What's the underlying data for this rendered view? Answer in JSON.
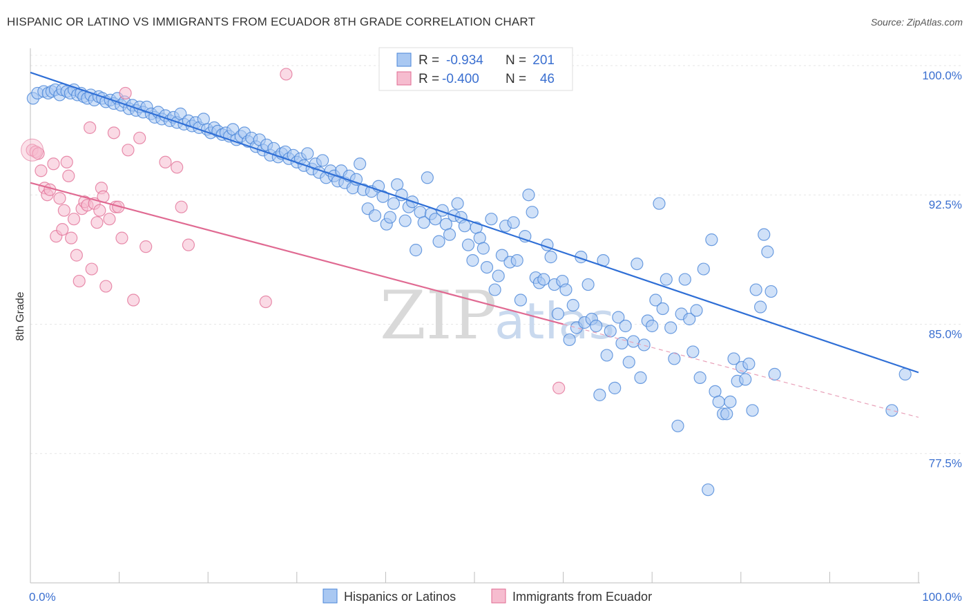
{
  "header": {
    "title": "HISPANIC OR LATINO VS IMMIGRANTS FROM ECUADOR 8TH GRADE CORRELATION CHART",
    "source": "Source: ZipAtlas.com"
  },
  "legend": {
    "rows": [
      {
        "r_label": "R =",
        "r_value": "-0.934",
        "n_label": "N =",
        "n_value": "201"
      },
      {
        "r_label": "R =",
        "r_value": "-0.400",
        "n_label": "N =",
        "n_value": "46"
      }
    ]
  },
  "watermark": {
    "part1": "ZIP",
    "part2": "atlas"
  },
  "chart_data": {
    "type": "scatter",
    "title": "HISPANIC OR LATINO VS IMMIGRANTS FROM ECUADOR 8TH GRADE CORRELATION CHART",
    "xlabel": "",
    "ylabel": "8th Grade",
    "xlim": [
      0,
      100
    ],
    "ylim": [
      70,
      101
    ],
    "x_tick_labels": [
      {
        "value": 0,
        "label": "0.0%"
      },
      {
        "value": 100,
        "label": "100.0%"
      }
    ],
    "y_ticks": [
      {
        "value": 77.5,
        "label": "77.5%"
      },
      {
        "value": 85.0,
        "label": "85.0%"
      },
      {
        "value": 92.5,
        "label": "92.5%"
      },
      {
        "value": 100.0,
        "label": "100.0%"
      }
    ],
    "grid": true,
    "legend_position": "top-center",
    "colors": {
      "series1": "#4a86d8",
      "series1_fill": "#a9c8f2",
      "series2": "#e06a92",
      "series2_fill": "#f6bccf",
      "tick": "#3a6fd0"
    },
    "series": [
      {
        "name": "Hispanics or Latinos",
        "R": -0.934,
        "N": 201,
        "trend": {
          "x": [
            0,
            100
          ],
          "y": [
            99.6,
            82.2
          ]
        },
        "points": [
          [
            0.3,
            98.1
          ],
          [
            0.8,
            98.4
          ],
          [
            1.5,
            98.5
          ],
          [
            2.0,
            98.4
          ],
          [
            2.4,
            98.5
          ],
          [
            2.8,
            98.6
          ],
          [
            3.3,
            98.3
          ],
          [
            3.6,
            98.6
          ],
          [
            4.1,
            98.5
          ],
          [
            4.5,
            98.4
          ],
          [
            4.9,
            98.6
          ],
          [
            5.3,
            98.3
          ],
          [
            5.7,
            98.4
          ],
          [
            6.0,
            98.2
          ],
          [
            6.4,
            98.1
          ],
          [
            6.8,
            98.3
          ],
          [
            7.2,
            98.0
          ],
          [
            7.7,
            98.2
          ],
          [
            8.1,
            98.1
          ],
          [
            8.5,
            97.9
          ],
          [
            9.0,
            98.0
          ],
          [
            9.4,
            97.8
          ],
          [
            9.8,
            98.1
          ],
          [
            10.2,
            97.7
          ],
          [
            10.6,
            97.9
          ],
          [
            11.1,
            97.5
          ],
          [
            11.5,
            97.7
          ],
          [
            11.9,
            97.4
          ],
          [
            12.3,
            97.6
          ],
          [
            12.7,
            97.3
          ],
          [
            13.1,
            97.6
          ],
          [
            13.6,
            97.2
          ],
          [
            14.0,
            97.0
          ],
          [
            14.4,
            97.3
          ],
          [
            14.8,
            96.9
          ],
          [
            15.2,
            97.1
          ],
          [
            15.7,
            96.8
          ],
          [
            16.1,
            97.0
          ],
          [
            16.5,
            96.7
          ],
          [
            16.9,
            97.2
          ],
          [
            17.3,
            96.6
          ],
          [
            17.8,
            96.8
          ],
          [
            18.2,
            96.5
          ],
          [
            18.6,
            96.7
          ],
          [
            19.0,
            96.4
          ],
          [
            19.5,
            96.9
          ],
          [
            19.9,
            96.3
          ],
          [
            20.3,
            96.1
          ],
          [
            20.7,
            96.4
          ],
          [
            21.1,
            96.2
          ],
          [
            21.6,
            96.0
          ],
          [
            22.0,
            96.1
          ],
          [
            22.4,
            95.9
          ],
          [
            22.8,
            96.3
          ],
          [
            23.2,
            95.7
          ],
          [
            23.7,
            95.9
          ],
          [
            24.1,
            96.1
          ],
          [
            24.5,
            95.6
          ],
          [
            24.9,
            95.8
          ],
          [
            25.4,
            95.3
          ],
          [
            25.8,
            95.7
          ],
          [
            26.2,
            95.1
          ],
          [
            26.6,
            95.4
          ],
          [
            27.0,
            94.8
          ],
          [
            27.4,
            95.2
          ],
          [
            27.9,
            94.7
          ],
          [
            28.3,
            94.9
          ],
          [
            28.7,
            95.0
          ],
          [
            29.1,
            94.6
          ],
          [
            29.6,
            94.8
          ],
          [
            30.0,
            94.4
          ],
          [
            30.4,
            94.6
          ],
          [
            30.8,
            94.2
          ],
          [
            31.2,
            94.9
          ],
          [
            31.7,
            94.0
          ],
          [
            32.1,
            94.3
          ],
          [
            32.5,
            93.8
          ],
          [
            32.9,
            94.5
          ],
          [
            33.3,
            93.5
          ],
          [
            33.8,
            93.9
          ],
          [
            34.2,
            93.6
          ],
          [
            34.6,
            93.3
          ],
          [
            35.0,
            93.9
          ],
          [
            35.4,
            93.2
          ],
          [
            35.9,
            93.6
          ],
          [
            36.3,
            92.9
          ],
          [
            36.7,
            93.4
          ],
          [
            37.1,
            94.3
          ],
          [
            37.5,
            92.8
          ],
          [
            38.0,
            91.7
          ],
          [
            38.4,
            92.7
          ],
          [
            38.8,
            91.3
          ],
          [
            39.2,
            93.0
          ],
          [
            39.7,
            92.4
          ],
          [
            40.1,
            90.8
          ],
          [
            40.5,
            91.2
          ],
          [
            40.9,
            92.0
          ],
          [
            41.3,
            93.1
          ],
          [
            41.8,
            92.5
          ],
          [
            42.2,
            91.0
          ],
          [
            42.6,
            91.8
          ],
          [
            43.0,
            92.1
          ],
          [
            43.4,
            89.3
          ],
          [
            43.9,
            91.5
          ],
          [
            44.3,
            90.9
          ],
          [
            44.7,
            93.5
          ],
          [
            45.1,
            91.4
          ],
          [
            45.6,
            91.1
          ],
          [
            46.0,
            89.8
          ],
          [
            46.4,
            91.6
          ],
          [
            46.8,
            90.8
          ],
          [
            47.2,
            90.2
          ],
          [
            47.7,
            91.3
          ],
          [
            48.1,
            92.0
          ],
          [
            48.5,
            91.2
          ],
          [
            48.9,
            90.7
          ],
          [
            49.3,
            89.6
          ],
          [
            49.8,
            88.7
          ],
          [
            50.2,
            90.6
          ],
          [
            50.6,
            90.0
          ],
          [
            51.0,
            89.4
          ],
          [
            51.4,
            88.3
          ],
          [
            51.9,
            91.1
          ],
          [
            52.3,
            87.0
          ],
          [
            52.7,
            87.8
          ],
          [
            53.1,
            89.0
          ],
          [
            53.5,
            90.7
          ],
          [
            54.0,
            88.6
          ],
          [
            54.4,
            90.9
          ],
          [
            54.8,
            88.7
          ],
          [
            55.2,
            86.4
          ],
          [
            55.7,
            90.1
          ],
          [
            56.1,
            92.5
          ],
          [
            56.5,
            91.5
          ],
          [
            56.9,
            87.7
          ],
          [
            57.3,
            87.4
          ],
          [
            57.8,
            87.6
          ],
          [
            58.2,
            89.6
          ],
          [
            58.6,
            88.9
          ],
          [
            59.0,
            87.3
          ],
          [
            59.4,
            85.6
          ],
          [
            59.9,
            87.5
          ],
          [
            60.3,
            87.0
          ],
          [
            60.7,
            84.1
          ],
          [
            61.1,
            86.1
          ],
          [
            61.5,
            84.8
          ],
          [
            62.0,
            88.9
          ],
          [
            62.4,
            85.1
          ],
          [
            62.8,
            87.3
          ],
          [
            63.2,
            85.3
          ],
          [
            63.7,
            84.9
          ],
          [
            64.1,
            80.9
          ],
          [
            64.5,
            88.7
          ],
          [
            64.9,
            83.2
          ],
          [
            65.3,
            84.6
          ],
          [
            65.8,
            81.3
          ],
          [
            66.2,
            85.4
          ],
          [
            66.6,
            83.9
          ],
          [
            67.0,
            84.9
          ],
          [
            67.4,
            82.8
          ],
          [
            67.9,
            84.0
          ],
          [
            68.3,
            88.5
          ],
          [
            68.7,
            81.9
          ],
          [
            69.1,
            83.8
          ],
          [
            69.5,
            85.2
          ],
          [
            70.0,
            84.9
          ],
          [
            70.4,
            86.4
          ],
          [
            70.8,
            92.0
          ],
          [
            71.2,
            85.9
          ],
          [
            71.6,
            87.6
          ],
          [
            72.1,
            84.8
          ],
          [
            72.5,
            83.0
          ],
          [
            72.9,
            79.1
          ],
          [
            73.3,
            85.6
          ],
          [
            73.7,
            87.6
          ],
          [
            74.2,
            85.3
          ],
          [
            74.6,
            83.4
          ],
          [
            75.0,
            85.8
          ],
          [
            75.4,
            81.9
          ],
          [
            75.8,
            88.2
          ],
          [
            76.3,
            75.4
          ],
          [
            76.7,
            89.9
          ],
          [
            77.1,
            81.1
          ],
          [
            77.5,
            80.5
          ],
          [
            78.0,
            79.8
          ],
          [
            78.4,
            79.8
          ],
          [
            78.8,
            80.5
          ],
          [
            79.2,
            83.0
          ],
          [
            79.6,
            81.7
          ],
          [
            80.1,
            82.5
          ],
          [
            80.5,
            81.8
          ],
          [
            80.9,
            82.7
          ],
          [
            81.3,
            80.0
          ],
          [
            81.7,
            87.0
          ],
          [
            82.2,
            86.0
          ],
          [
            82.6,
            90.2
          ],
          [
            83.0,
            89.2
          ],
          [
            83.4,
            86.9
          ],
          [
            83.8,
            82.1
          ],
          [
            98.5,
            82.1
          ],
          [
            97.0,
            80.0
          ]
        ]
      },
      {
        "name": "Immigrants from Ecuador",
        "R": -0.4,
        "N": 46,
        "trend": {
          "x": [
            0,
            60
          ],
          "y": [
            93.2,
            85.0
          ]
        },
        "trend_dashed": {
          "x": [
            60,
            100
          ],
          "y": [
            85.0,
            79.6
          ]
        },
        "points": [
          [
            0.2,
            95.1
          ],
          [
            0.6,
            95.0
          ],
          [
            1.2,
            93.9
          ],
          [
            1.6,
            92.9
          ],
          [
            1.9,
            92.5
          ],
          [
            2.2,
            92.8
          ],
          [
            2.6,
            94.3
          ],
          [
            2.9,
            90.1
          ],
          [
            3.3,
            92.3
          ],
          [
            3.6,
            90.5
          ],
          [
            3.8,
            91.6
          ],
          [
            4.1,
            94.4
          ],
          [
            4.3,
            93.6
          ],
          [
            4.6,
            90.0
          ],
          [
            4.9,
            91.1
          ],
          [
            5.2,
            89.0
          ],
          [
            5.5,
            87.5
          ],
          [
            5.8,
            91.7
          ],
          [
            6.1,
            92.1
          ],
          [
            6.4,
            91.9
          ],
          [
            6.7,
            96.4
          ],
          [
            6.9,
            88.2
          ],
          [
            7.2,
            92.0
          ],
          [
            7.5,
            90.9
          ],
          [
            7.8,
            91.6
          ],
          [
            8.0,
            92.9
          ],
          [
            8.2,
            92.4
          ],
          [
            8.5,
            87.2
          ],
          [
            8.9,
            91.1
          ],
          [
            9.4,
            96.1
          ],
          [
            9.6,
            91.8
          ],
          [
            9.9,
            91.8
          ],
          [
            10.3,
            90.0
          ],
          [
            10.7,
            98.4
          ],
          [
            11.0,
            95.1
          ],
          [
            11.6,
            86.4
          ],
          [
            12.3,
            95.8
          ],
          [
            13.0,
            89.5
          ],
          [
            15.2,
            94.4
          ],
          [
            16.5,
            94.1
          ],
          [
            17.0,
            91.8
          ],
          [
            17.8,
            89.6
          ],
          [
            26.5,
            86.3
          ],
          [
            28.8,
            99.5
          ],
          [
            59.5,
            81.3
          ],
          [
            0.9,
            94.9
          ]
        ]
      }
    ]
  }
}
